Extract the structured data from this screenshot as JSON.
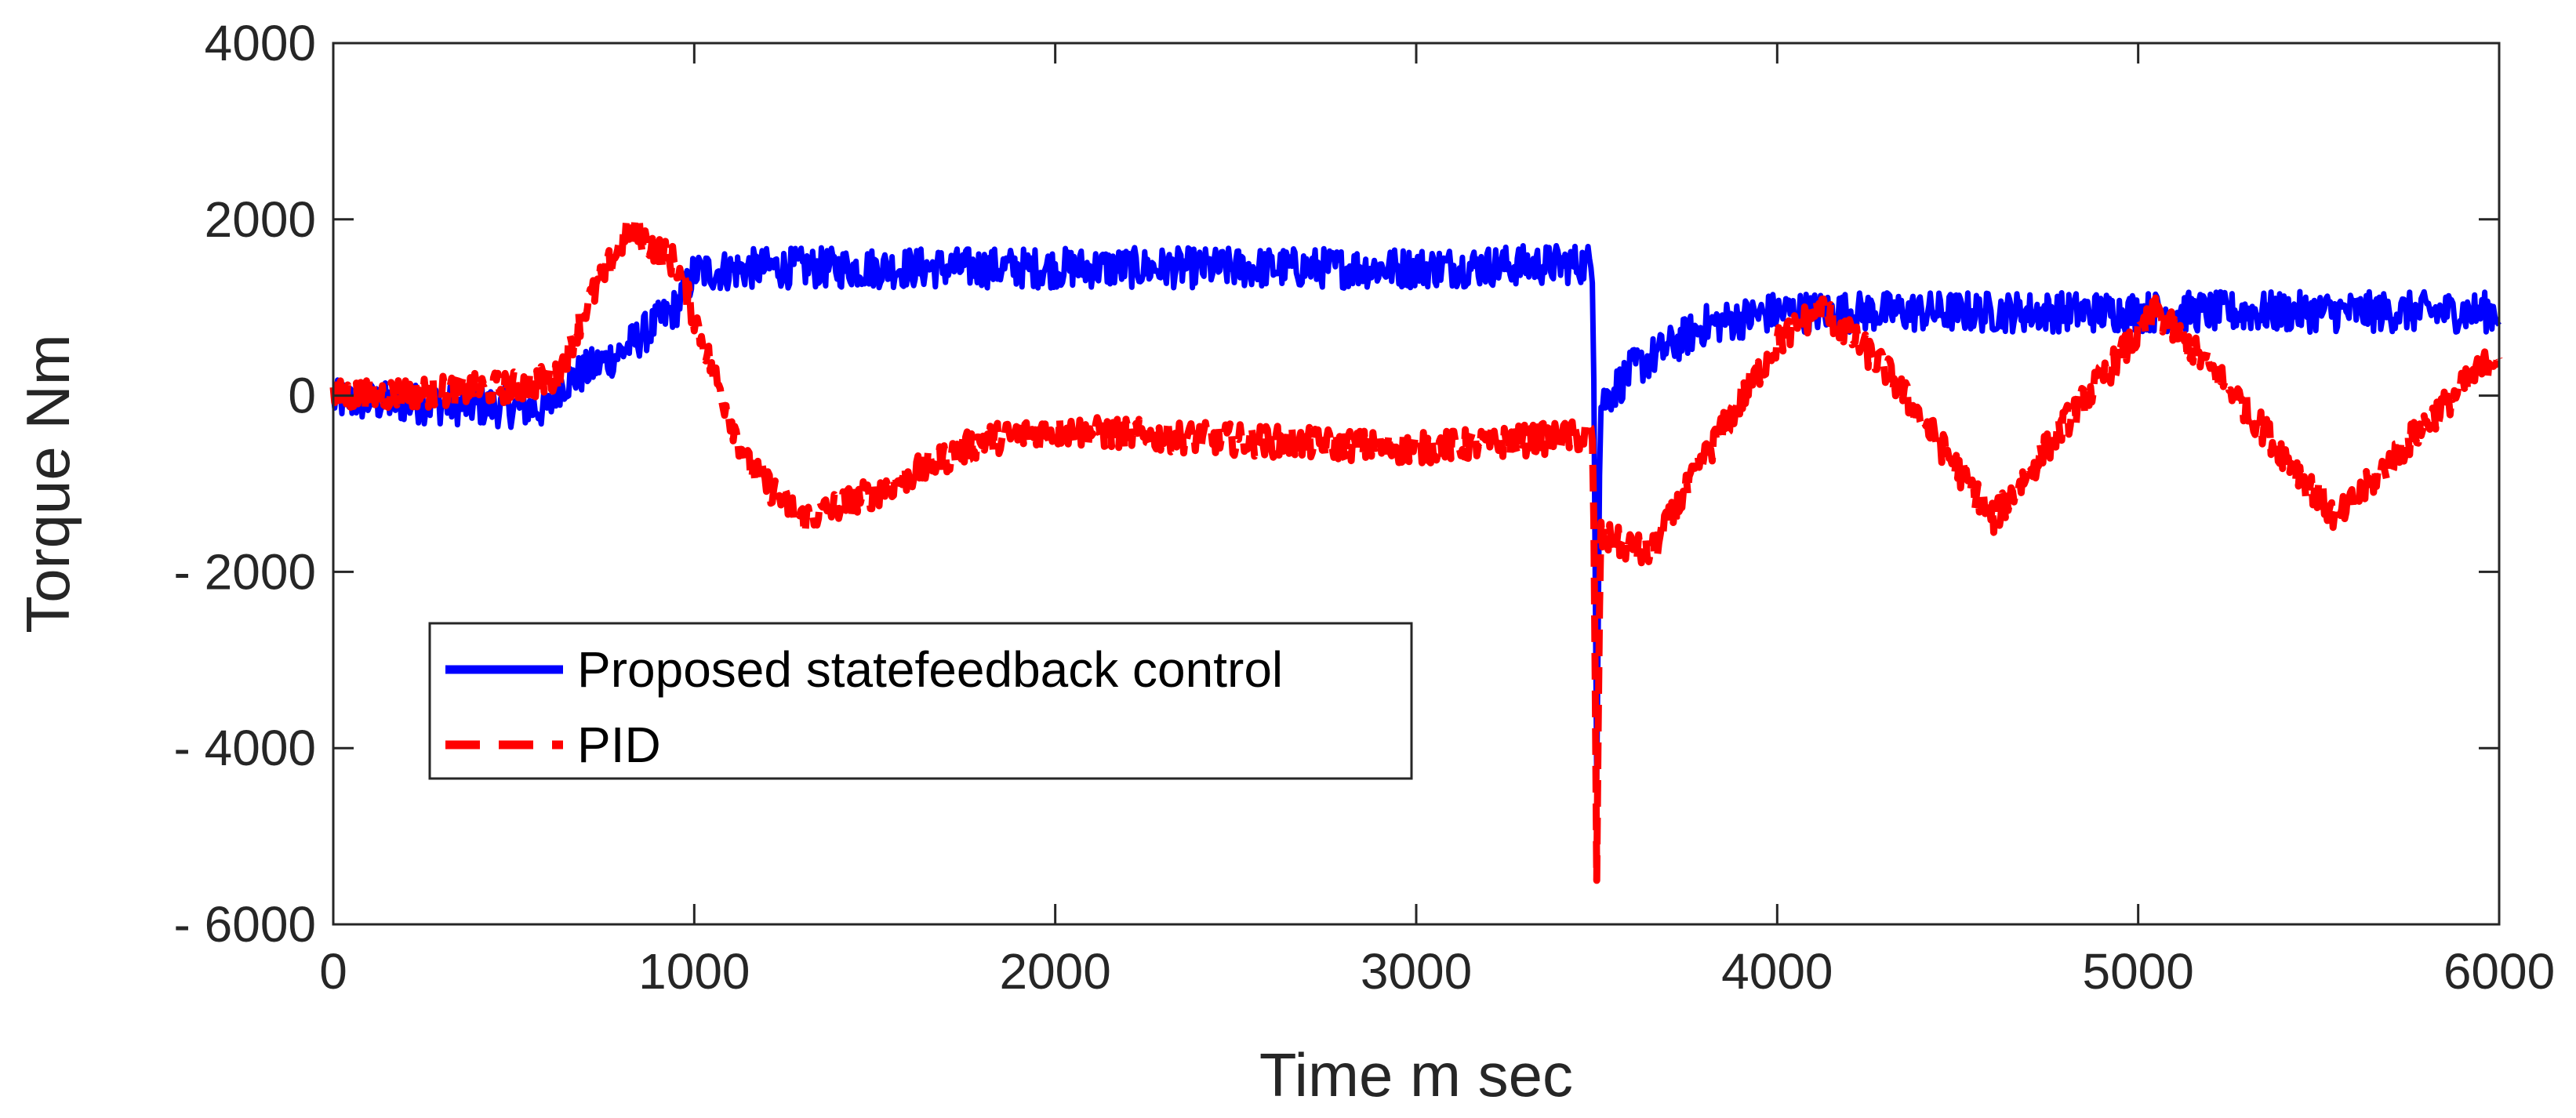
{
  "chart_data": {
    "type": "line",
    "title": "",
    "xlabel": "Time m sec",
    "ylabel": "Torque Nm",
    "xlim": [
      0,
      6000
    ],
    "ylim": [
      -6000,
      4000
    ],
    "xticks": [
      0,
      1000,
      2000,
      3000,
      4000,
      5000,
      6000
    ],
    "yticks": [
      4000,
      2000,
      0,
      -2000,
      -4000,
      -6000
    ],
    "xtick_labels": [
      "0",
      "1000",
      "2000",
      "3000",
      "4000",
      "5000",
      "6000"
    ],
    "ytick_labels": [
      "4000",
      "2000",
      "0",
      "- 2000",
      "- 4000",
      "- 6000"
    ],
    "grid": false,
    "legend_position": "lower-left",
    "series": [
      {
        "name": "Proposed statefeedback control",
        "color": "#0000ff",
        "style": "solid",
        "noise": 230,
        "x": [
          0,
          300,
          600,
          620,
          800,
          950,
          1000,
          1200,
          2000,
          3000,
          3490,
          3500,
          3510,
          3600,
          3800,
          4000,
          4200,
          5000,
          6000
        ],
        "y": [
          -50,
          -100,
          -150,
          100,
          500,
          1000,
          1400,
          1450,
          1450,
          1450,
          1500,
          -4200,
          -100,
          300,
          800,
          950,
          950,
          950,
          950
        ]
      },
      {
        "name": "PID",
        "color": "#ff0000",
        "style": "dashed",
        "noise": 180,
        "x": [
          0,
          300,
          500,
          620,
          700,
          820,
          950,
          1050,
          1150,
          1300,
          1500,
          1800,
          2000,
          2500,
          3000,
          3490,
          3500,
          3510,
          3650,
          3800,
          4000,
          4120,
          4300,
          4600,
          4800,
          5050,
          5250,
          5550,
          5800,
          6000
        ],
        "y": [
          0,
          50,
          100,
          200,
          1000,
          1900,
          1500,
          300,
          -800,
          -1400,
          -1100,
          -500,
          -400,
          -500,
          -600,
          -450,
          -5400,
          -1600,
          -1800,
          -700,
          600,
          1000,
          300,
          -1400,
          -300,
          950,
          100,
          -1400,
          -300,
          500
        ]
      }
    ]
  }
}
